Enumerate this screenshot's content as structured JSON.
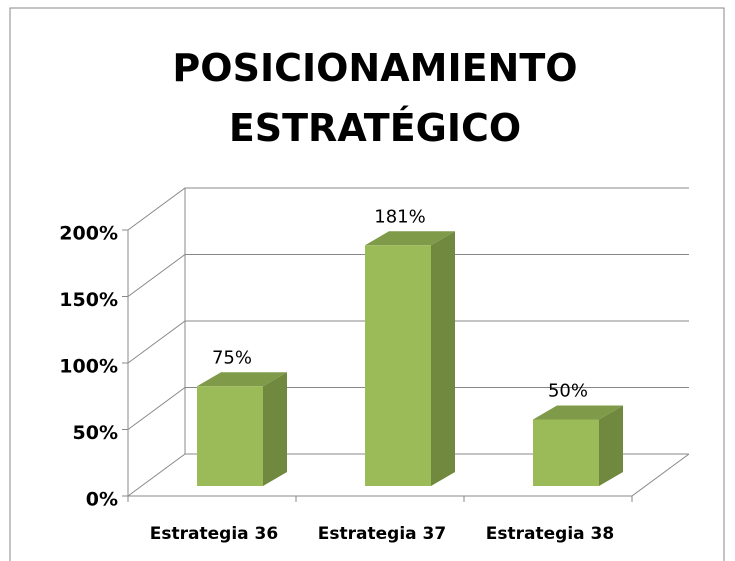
{
  "chart_data": {
    "type": "bar3d",
    "title": "POSICIONAMIENTO ESTRATÉGICO",
    "categories": [
      "Estrategia 36",
      "Estrategia 37",
      "Estrategia 38"
    ],
    "values": [
      75,
      181,
      50
    ],
    "value_labels": [
      "75%",
      "181%",
      "50%"
    ],
    "color": "#9bbb59",
    "ylim": [
      0,
      200
    ],
    "yticks": [
      {
        "value": 0,
        "label": "0%"
      },
      {
        "value": 50,
        "label": "50%"
      },
      {
        "value": 100,
        "label": "100%"
      },
      {
        "value": 150,
        "label": "150%"
      },
      {
        "value": 200,
        "label": "200%"
      }
    ],
    "grid": true
  }
}
